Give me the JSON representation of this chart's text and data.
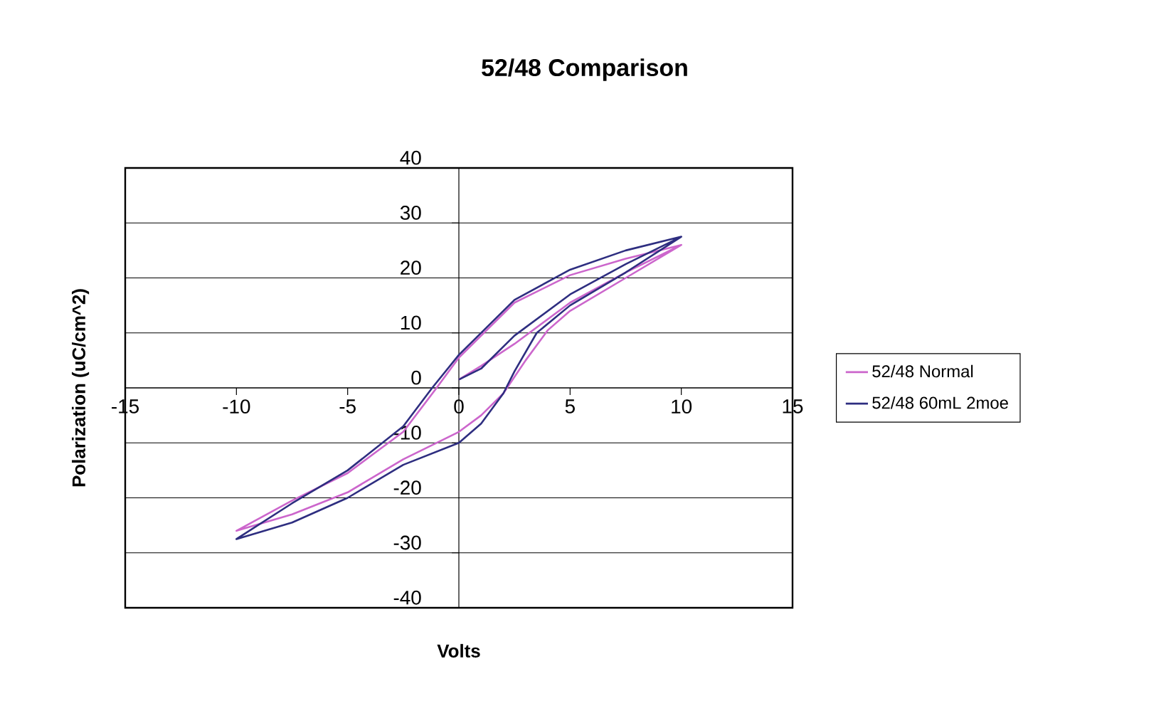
{
  "chart_data": {
    "type": "line",
    "title": "52/48 Comparison",
    "xlabel": "Volts",
    "ylabel": "Polarization (uC/cm^2)",
    "xlim": [
      -15,
      15
    ],
    "xticks": [
      -15,
      -10,
      -5,
      0,
      5,
      10,
      15
    ],
    "ylim": [
      -40,
      40
    ],
    "yticks": [
      -40,
      -30,
      -20,
      -10,
      0,
      10,
      20,
      30,
      40
    ],
    "grid": "y",
    "legend": "right",
    "marker": "none",
    "line_style": "solid",
    "series": [
      {
        "name": "52/48 Normal",
        "color": "#cc66cc",
        "x": [
          0,
          1,
          2.5,
          5,
          7.5,
          10,
          7.5,
          5,
          2.5,
          0,
          -1,
          -2.5,
          -5,
          -7.5,
          -10,
          -7.5,
          -5,
          -2.5,
          0,
          1,
          2,
          3,
          4,
          5,
          7.5,
          10
        ],
        "values": [
          1.5,
          4,
          8,
          15.5,
          21,
          26,
          23.5,
          20.5,
          15.5,
          5.5,
          0,
          -8,
          -15.5,
          -20.5,
          -26,
          -23,
          -19,
          -13,
          -8,
          -5,
          -1,
          5,
          10.5,
          14,
          20,
          26
        ]
      },
      {
        "name": "52/48 60mL 2moe",
        "color": "#2e2e80",
        "x": [
          0,
          1,
          2.5,
          5,
          7.5,
          10,
          7.5,
          5,
          2.5,
          0,
          -1.2,
          -2.5,
          -5,
          -7.5,
          -10,
          -7.5,
          -5,
          -2.5,
          0,
          1,
          2,
          2.5,
          3.5,
          5,
          7.5,
          10
        ],
        "values": [
          1.5,
          3.5,
          9.5,
          17,
          22.5,
          27.5,
          25,
          21.5,
          16,
          6,
          0,
          -7,
          -15,
          -21,
          -27.5,
          -24.5,
          -20,
          -14,
          -10,
          -6.5,
          -1,
          3,
          10,
          15,
          21,
          27.5
        ]
      }
    ]
  }
}
